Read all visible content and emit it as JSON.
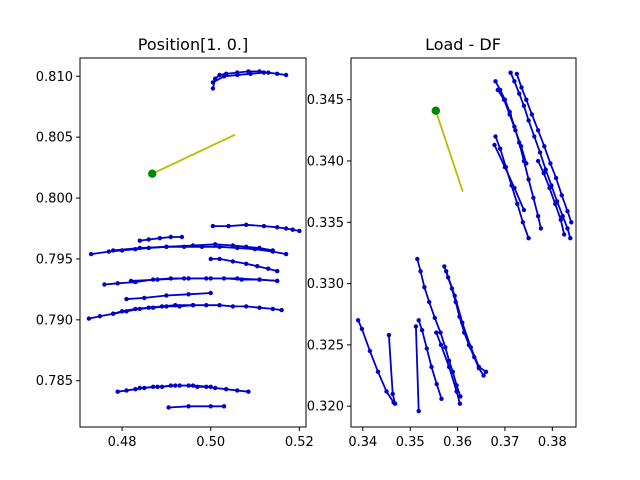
{
  "chart_data": [
    {
      "type": "line",
      "title": "Position[1. 0.]",
      "xlabel": "",
      "ylabel": "",
      "xlim": [
        0.4705,
        0.5215
      ],
      "ylim": [
        0.7812,
        0.8115
      ],
      "xticks": [
        0.48,
        0.5,
        0.52
      ],
      "xtick_labels": [
        "0.48",
        "0.50",
        "0.52"
      ],
      "yticks": [
        0.785,
        0.79,
        0.795,
        0.8,
        0.805,
        0.81
      ],
      "ytick_labels": [
        "0.785",
        "0.790",
        "0.795",
        "0.800",
        "0.805",
        "0.810"
      ],
      "grid": false,
      "series_color": "#0000cc",
      "highlight_color": "#bbbb00",
      "marker_color": "#008800",
      "highlight": {
        "start": [
          0.4868,
          0.802
        ],
        "end": [
          0.5055,
          0.8052
        ]
      },
      "trajectories": [
        [
          [
            0.5005,
            0.809
          ],
          [
            0.501,
            0.8098
          ],
          [
            0.502,
            0.8101
          ],
          [
            0.5035,
            0.8102
          ],
          [
            0.506,
            0.8103
          ],
          [
            0.5085,
            0.8104
          ],
          [
            0.511,
            0.8104
          ],
          [
            0.513,
            0.8103
          ],
          [
            0.515,
            0.8102
          ],
          [
            0.517,
            0.8101
          ]
        ],
        [
          [
            0.5005,
            0.8095
          ],
          [
            0.503,
            0.81
          ],
          [
            0.506,
            0.8101
          ],
          [
            0.509,
            0.8102
          ],
          [
            0.512,
            0.8103
          ]
        ],
        [
          [
            0.5005,
            0.7977
          ],
          [
            0.504,
            0.7977
          ],
          [
            0.508,
            0.7978
          ],
          [
            0.512,
            0.7977
          ],
          [
            0.515,
            0.7976
          ],
          [
            0.517,
            0.7975
          ],
          [
            0.5185,
            0.7974
          ],
          [
            0.52,
            0.7973
          ]
        ],
        [
          [
            0.473,
            0.7954
          ],
          [
            0.477,
            0.7956
          ],
          [
            0.48,
            0.7957
          ],
          [
            0.483,
            0.7958
          ],
          [
            0.486,
            0.7959
          ],
          [
            0.49,
            0.796
          ],
          [
            0.494,
            0.796
          ],
          [
            0.498,
            0.796
          ],
          [
            0.502,
            0.796
          ],
          [
            0.506,
            0.7959
          ],
          [
            0.51,
            0.7958
          ],
          [
            0.514,
            0.7956
          ],
          [
            0.517,
            0.7954
          ]
        ],
        [
          [
            0.478,
            0.7957
          ],
          [
            0.484,
            0.7959
          ],
          [
            0.49,
            0.796
          ],
          [
            0.496,
            0.7961
          ],
          [
            0.501,
            0.7962
          ],
          [
            0.505,
            0.7961
          ],
          [
            0.508,
            0.796
          ],
          [
            0.511,
            0.7959
          ],
          [
            0.514,
            0.7957
          ]
        ],
        [
          [
            0.484,
            0.7965
          ],
          [
            0.486,
            0.7966
          ],
          [
            0.4885,
            0.7967
          ],
          [
            0.491,
            0.7968
          ],
          [
            0.4935,
            0.7968
          ]
        ],
        [
          [
            0.5,
            0.795
          ],
          [
            0.502,
            0.795
          ],
          [
            0.505,
            0.7948
          ],
          [
            0.508,
            0.7946
          ],
          [
            0.5105,
            0.7944
          ],
          [
            0.513,
            0.7942
          ],
          [
            0.515,
            0.794
          ]
        ],
        [
          [
            0.476,
            0.7929
          ],
          [
            0.479,
            0.793
          ],
          [
            0.483,
            0.7931
          ],
          [
            0.487,
            0.7933
          ],
          [
            0.491,
            0.7934
          ],
          [
            0.495,
            0.7934
          ],
          [
            0.499,
            0.7934
          ],
          [
            0.503,
            0.7934
          ],
          [
            0.507,
            0.7933
          ],
          [
            0.511,
            0.7933
          ],
          [
            0.515,
            0.7932
          ]
        ],
        [
          [
            0.482,
            0.7932
          ],
          [
            0.488,
            0.7933
          ],
          [
            0.494,
            0.7934
          ],
          [
            0.5,
            0.7934
          ],
          [
            0.506,
            0.7934
          ],
          [
            0.511,
            0.7933
          ],
          [
            0.515,
            0.7932
          ]
        ],
        [
          [
            0.481,
            0.7917
          ],
          [
            0.485,
            0.7918
          ],
          [
            0.49,
            0.792
          ],
          [
            0.495,
            0.7921
          ],
          [
            0.5,
            0.7922
          ]
        ],
        [
          [
            0.4725,
            0.7901
          ],
          [
            0.475,
            0.7903
          ],
          [
            0.478,
            0.7905
          ],
          [
            0.481,
            0.7907
          ],
          [
            0.484,
            0.7909
          ],
          [
            0.487,
            0.791
          ],
          [
            0.49,
            0.7911
          ],
          [
            0.493,
            0.7911
          ],
          [
            0.496,
            0.7912
          ],
          [
            0.499,
            0.7912
          ],
          [
            0.502,
            0.7912
          ],
          [
            0.505,
            0.7911
          ],
          [
            0.508,
            0.7911
          ],
          [
            0.511,
            0.791
          ],
          [
            0.514,
            0.7909
          ],
          [
            0.516,
            0.7908
          ]
        ],
        [
          [
            0.478,
            0.7905
          ],
          [
            0.48,
            0.7907
          ],
          [
            0.483,
            0.7909
          ],
          [
            0.486,
            0.791
          ],
          [
            0.489,
            0.7911
          ],
          [
            0.492,
            0.7912
          ],
          [
            0.496,
            0.7912
          ]
        ],
        [
          [
            0.479,
            0.7841
          ],
          [
            0.481,
            0.7842
          ],
          [
            0.483,
            0.7843
          ],
          [
            0.485,
            0.7844
          ],
          [
            0.487,
            0.7845
          ],
          [
            0.489,
            0.7845
          ],
          [
            0.491,
            0.7846
          ],
          [
            0.493,
            0.7846
          ],
          [
            0.495,
            0.7846
          ],
          [
            0.497,
            0.7845
          ],
          [
            0.499,
            0.7845
          ],
          [
            0.501,
            0.7844
          ],
          [
            0.5035,
            0.7843
          ],
          [
            0.506,
            0.7842
          ],
          [
            0.5085,
            0.7841
          ]
        ],
        [
          [
            0.484,
            0.7844
          ],
          [
            0.488,
            0.7845
          ],
          [
            0.492,
            0.7846
          ],
          [
            0.496,
            0.7846
          ],
          [
            0.5,
            0.7845
          ]
        ],
        [
          [
            0.4905,
            0.7828
          ],
          [
            0.495,
            0.7829
          ],
          [
            0.5,
            0.7829
          ],
          [
            0.503,
            0.7829
          ]
        ]
      ]
    },
    {
      "type": "line",
      "title": "Load - DF",
      "xlabel": "",
      "ylabel": "",
      "xlim": [
        0.3375,
        0.385
      ],
      "ylim": [
        0.3183,
        0.3484
      ],
      "xticks": [
        0.34,
        0.35,
        0.36,
        0.37,
        0.38
      ],
      "xtick_labels": [
        "0.34",
        "0.35",
        "0.36",
        "0.37",
        "0.38"
      ],
      "yticks": [
        0.32,
        0.325,
        0.33,
        0.335,
        0.34,
        0.345
      ],
      "ytick_labels": [
        "0.320",
        "0.325",
        "0.330",
        "0.335",
        "0.340",
        "0.345"
      ],
      "grid": false,
      "series_color": "#0000cc",
      "highlight_color": "#bbbb00",
      "marker_color": "#008800",
      "highlight": {
        "start": [
          0.3554,
          0.3441
        ],
        "end": [
          0.3611,
          0.3375
        ]
      },
      "trajectories": [
        [
          [
            0.368,
            0.3465
          ],
          [
            0.369,
            0.3458
          ],
          [
            0.37,
            0.345
          ],
          [
            0.371,
            0.344
          ],
          [
            0.372,
            0.3428
          ],
          [
            0.373,
            0.3415
          ],
          [
            0.374,
            0.34
          ],
          [
            0.375,
            0.3385
          ],
          [
            0.376,
            0.337
          ],
          [
            0.377,
            0.3355
          ],
          [
            0.3776,
            0.3345
          ]
        ],
        [
          [
            0.3685,
            0.3458
          ],
          [
            0.3698,
            0.345
          ],
          [
            0.371,
            0.3438
          ],
          [
            0.3722,
            0.3425
          ],
          [
            0.3734,
            0.3412
          ],
          [
            0.3745,
            0.3398
          ]
        ],
        [
          [
            0.3712,
            0.3472
          ],
          [
            0.372,
            0.3465
          ],
          [
            0.373,
            0.3455
          ],
          [
            0.374,
            0.3445
          ],
          [
            0.375,
            0.3433
          ],
          [
            0.3762,
            0.342
          ],
          [
            0.3774,
            0.3407
          ],
          [
            0.3786,
            0.3393
          ],
          [
            0.3798,
            0.338
          ],
          [
            0.381,
            0.3367
          ],
          [
            0.3822,
            0.3355
          ],
          [
            0.3832,
            0.3345
          ],
          [
            0.3838,
            0.3337
          ]
        ],
        [
          [
            0.3725,
            0.3471
          ],
          [
            0.3735,
            0.346
          ],
          [
            0.3745,
            0.345
          ],
          [
            0.3757,
            0.3438
          ],
          [
            0.377,
            0.3425
          ],
          [
            0.3783,
            0.3412
          ],
          [
            0.3796,
            0.3398
          ],
          [
            0.3808,
            0.3386
          ],
          [
            0.382,
            0.3372
          ],
          [
            0.3832,
            0.3359
          ],
          [
            0.384,
            0.335
          ]
        ],
        [
          [
            0.368,
            0.342
          ],
          [
            0.369,
            0.341
          ],
          [
            0.3702,
            0.3395
          ],
          [
            0.3714,
            0.338
          ],
          [
            0.3726,
            0.3365
          ],
          [
            0.3738,
            0.335
          ],
          [
            0.375,
            0.3337
          ]
        ],
        [
          [
            0.3678,
            0.3413
          ],
          [
            0.37,
            0.3395
          ],
          [
            0.372,
            0.3378
          ],
          [
            0.374,
            0.336
          ]
        ],
        [
          [
            0.377,
            0.34
          ],
          [
            0.3782,
            0.339
          ],
          [
            0.3794,
            0.3378
          ],
          [
            0.3806,
            0.3365
          ],
          [
            0.3818,
            0.3352
          ],
          [
            0.3825,
            0.334
          ]
        ],
        [
          [
            0.339,
            0.327
          ],
          [
            0.3398,
            0.3263
          ],
          [
            0.3415,
            0.3245
          ],
          [
            0.3432,
            0.3228
          ],
          [
            0.345,
            0.3212
          ],
          [
            0.3465,
            0.3203
          ]
        ],
        [
          [
            0.3455,
            0.3258
          ],
          [
            0.3463,
            0.321
          ],
          [
            0.3468,
            0.3202
          ]
        ],
        [
          [
            0.3515,
            0.332
          ],
          [
            0.3522,
            0.331
          ],
          [
            0.353,
            0.3297
          ],
          [
            0.354,
            0.3285
          ],
          [
            0.3552,
            0.3272
          ],
          [
            0.3564,
            0.326
          ],
          [
            0.3574,
            0.3248
          ],
          [
            0.3582,
            0.3237
          ],
          [
            0.359,
            0.3228
          ],
          [
            0.3598,
            0.3217
          ],
          [
            0.3606,
            0.3208
          ]
        ],
        [
          [
            0.3518,
            0.327
          ],
          [
            0.3525,
            0.3262
          ],
          [
            0.3535,
            0.3247
          ],
          [
            0.3545,
            0.3232
          ],
          [
            0.3556,
            0.3218
          ],
          [
            0.3566,
            0.3206
          ]
        ],
        [
          [
            0.3512,
            0.3265
          ],
          [
            0.3518,
            0.3196
          ]
        ],
        [
          [
            0.3572,
            0.3314
          ],
          [
            0.358,
            0.3305
          ],
          [
            0.3588,
            0.3296
          ],
          [
            0.3596,
            0.3285
          ],
          [
            0.3604,
            0.3273
          ],
          [
            0.3614,
            0.326
          ],
          [
            0.3624,
            0.325
          ],
          [
            0.3635,
            0.324
          ],
          [
            0.3645,
            0.3231
          ],
          [
            0.3655,
            0.3225
          ]
        ],
        [
          [
            0.3576,
            0.331
          ],
          [
            0.3594,
            0.329
          ],
          [
            0.361,
            0.3268
          ],
          [
            0.3628,
            0.3248
          ],
          [
            0.3645,
            0.3232
          ],
          [
            0.366,
            0.3228
          ]
        ],
        [
          [
            0.3555,
            0.326
          ],
          [
            0.3565,
            0.325
          ],
          [
            0.3582,
            0.3232
          ],
          [
            0.3598,
            0.3212
          ],
          [
            0.3605,
            0.3202
          ]
        ]
      ]
    }
  ]
}
